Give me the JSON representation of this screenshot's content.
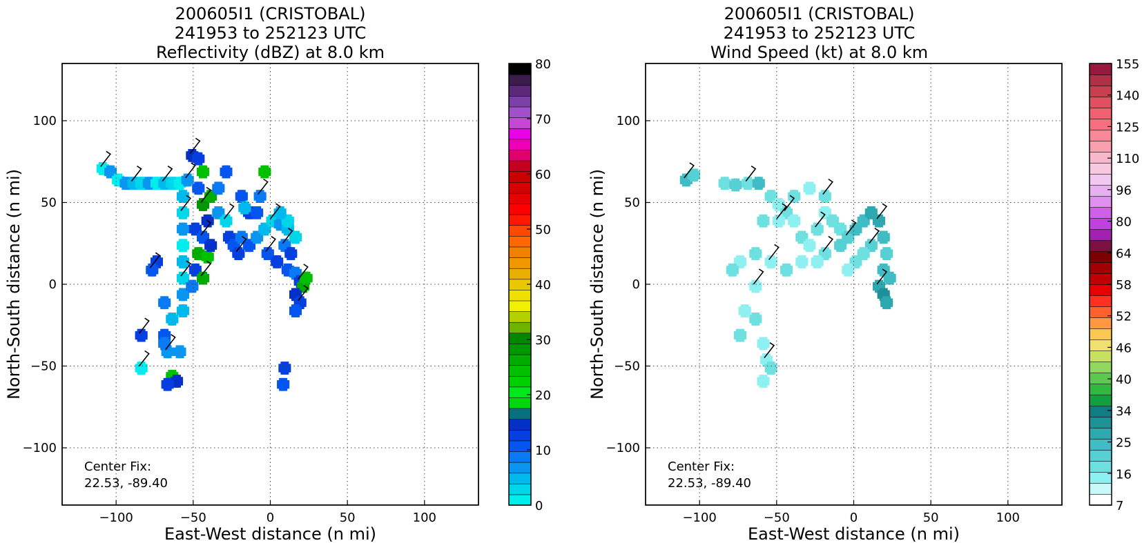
{
  "chart_data": [
    {
      "type": "heatmap",
      "title": [
        "200605I1 (CRISTOBAL)",
        "241953 to 252123 UTC",
        "Reflectivity (dBZ) at 8.0 km"
      ],
      "xlabel": "East-West distance (n mi)",
      "ylabel": "North-South distance (n mi)",
      "xlim": [
        -135,
        135
      ],
      "ylim": [
        -135,
        135
      ],
      "xticks": [
        -100,
        -50,
        0,
        50,
        100
      ],
      "yticks": [
        -100,
        -50,
        0,
        50,
        100
      ],
      "xtick_labels": [
        "−100",
        "−50",
        "0",
        "50",
        "100"
      ],
      "ytick_labels": [
        "−100",
        "−50",
        "0",
        "50",
        "100"
      ],
      "grid": true,
      "annotation": [
        "Center Fix:",
        "22.53, -89.40"
      ],
      "colorbar": {
        "label": "dBZ",
        "min": 0,
        "max": 80,
        "ticks": [
          0,
          10,
          20,
          30,
          40,
          50,
          60,
          70,
          80
        ],
        "tick_labels": [
          "0",
          "10",
          "20",
          "30",
          "40",
          "50",
          "60",
          "70",
          "80"
        ],
        "colors": [
          "#00eded",
          "#00d6ea",
          "#00b9ec",
          "#0a96f0",
          "#0a7af4",
          "#0555f0",
          "#063fe0",
          "#0530c8",
          "#08707d",
          "#00d60e",
          "#00e81c",
          "#00d000",
          "#00c000",
          "#00ac00",
          "#009800",
          "#008800",
          "#6cb400",
          "#b4d000",
          "#f0f000",
          "#f0e000",
          "#e8c800",
          "#e8b000",
          "#f09800",
          "#f08000",
          "#ff6800",
          "#ff4800",
          "#ff1800",
          "#ff0000",
          "#e80000",
          "#d60000",
          "#c80000",
          "#c40020",
          "#e00070",
          "#f000b4",
          "#e800e8",
          "#c448d4",
          "#a050c8",
          "#7c40a4",
          "#5c2878",
          "#3c1c4c",
          "#000000"
        ]
      },
      "series": [
        {
          "cells": [
            [
              -110,
              72,
              0
            ],
            [
              -105,
              70,
              3
            ],
            [
              -100,
              65,
              0
            ],
            [
              -95,
              63,
              3
            ],
            [
              -90,
              63,
              2
            ],
            [
              -85,
              63,
              1
            ],
            [
              -80,
              63,
              3
            ],
            [
              -75,
              63,
              0
            ],
            [
              -70,
              63,
              2
            ],
            [
              -65,
              63,
              1
            ],
            [
              -60,
              63,
              0
            ],
            [
              -58,
              55,
              2
            ],
            [
              -58,
              45,
              1
            ],
            [
              -58,
              35,
              3
            ],
            [
              -58,
              25,
              0
            ],
            [
              -58,
              15,
              2
            ],
            [
              -58,
              5,
              1
            ],
            [
              -58,
              -5,
              3
            ],
            [
              -58,
              -15,
              2
            ],
            [
              -75,
              15,
              6
            ],
            [
              -78,
              10,
              5
            ],
            [
              -70,
              -10,
              4
            ],
            [
              -70,
              -30,
              5
            ],
            [
              -65,
              -20,
              2
            ],
            [
              -68,
              -40,
              3
            ],
            [
              -65,
              -55,
              12
            ],
            [
              -62,
              -58,
              7
            ],
            [
              -68,
              -60,
              6
            ],
            [
              -52,
              80,
              7
            ],
            [
              -48,
              78,
              6
            ],
            [
              -45,
              70,
              12
            ],
            [
              -48,
              60,
              5
            ],
            [
              -45,
              50,
              14
            ],
            [
              -40,
              55,
              13
            ],
            [
              -42,
              40,
              7
            ],
            [
              -50,
              35,
              6
            ],
            [
              -45,
              30,
              5
            ],
            [
              -48,
              20,
              13
            ],
            [
              -42,
              18,
              12
            ],
            [
              -50,
              10,
              6
            ],
            [
              -45,
              5,
              13
            ],
            [
              -52,
              0,
              4
            ],
            [
              -40,
              25,
              7
            ],
            [
              -35,
              45,
              3
            ],
            [
              -30,
              40,
              1
            ],
            [
              -28,
              30,
              6
            ],
            [
              -25,
              25,
              5
            ],
            [
              -20,
              30,
              4
            ],
            [
              -22,
              20,
              6
            ],
            [
              -15,
              25,
              5
            ],
            [
              -10,
              30,
              3
            ],
            [
              -5,
              35,
              2
            ],
            [
              0,
              40,
              1
            ],
            [
              5,
              38,
              3
            ],
            [
              10,
              35,
              2
            ],
            [
              15,
              30,
              1
            ],
            [
              8,
              25,
              4
            ],
            [
              12,
              20,
              6
            ],
            [
              -15,
              45,
              6
            ],
            [
              -10,
              45,
              5
            ],
            [
              -8,
              55,
              4
            ],
            [
              -5,
              70,
              12
            ],
            [
              -20,
              55,
              5
            ],
            [
              -18,
              48,
              2
            ],
            [
              -3,
              20,
              5
            ],
            [
              3,
              15,
              6
            ],
            [
              10,
              10,
              5
            ],
            [
              15,
              8,
              4
            ],
            [
              18,
              3,
              6
            ],
            [
              20,
              0,
              13
            ],
            [
              22,
              5,
              12
            ],
            [
              15,
              -5,
              7
            ],
            [
              18,
              -10,
              6
            ],
            [
              15,
              -15,
              5
            ],
            [
              10,
              40,
              1
            ],
            [
              5,
              45,
              2
            ],
            [
              -85,
              -30,
              6
            ],
            [
              -70,
              -35,
              4
            ],
            [
              8,
              -50,
              6
            ],
            [
              7,
              -60,
              5
            ],
            [
              -85,
              -50,
              0
            ],
            [
              -60,
              -40,
              3
            ],
            [
              -30,
              70,
              5
            ],
            [
              -35,
              60,
              4
            ],
            [
              -55,
              65,
              3
            ]
          ]
        }
      ]
    },
    {
      "type": "heatmap",
      "title": [
        "200605I1 (CRISTOBAL)",
        "241953 to 252123 UTC",
        "Wind Speed (kt) at 8.0 km"
      ],
      "xlabel": "East-West distance (n mi)",
      "ylabel": "North-South distance (n mi)",
      "xlim": [
        -135,
        135
      ],
      "ylim": [
        -135,
        135
      ],
      "xticks": [
        -100,
        -50,
        0,
        50,
        100
      ],
      "yticks": [
        -100,
        -50,
        0,
        50,
        100
      ],
      "xtick_labels": [
        "−100",
        "−50",
        "0",
        "50",
        "100"
      ],
      "ytick_labels": [
        "−100",
        "−50",
        "0",
        "50",
        "100"
      ],
      "grid": true,
      "annotation": [
        "Center Fix:",
        "22.53, -89.40"
      ],
      "colorbar": {
        "label": "kt",
        "tick_labels": [
          "7",
          "16",
          "25",
          "34",
          "40",
          "46",
          "52",
          "58",
          "64",
          "80",
          "96",
          "110",
          "125",
          "140",
          "155"
        ],
        "colors": [
          "#ffffff",
          "#c8f8f8",
          "#8ef0f0",
          "#6ee0e0",
          "#56d0d4",
          "#40bcc4",
          "#2ea8b0",
          "#1e9098",
          "#107c84",
          "#10a040",
          "#30b840",
          "#5cc850",
          "#90d860",
          "#c8e060",
          "#f0e070",
          "#f8c850",
          "#ff9840",
          "#ff6030",
          "#ff3020",
          "#e80000",
          "#c00000",
          "#a00000",
          "#7c0000",
          "#7c1040",
          "#a020b0",
          "#c040e0",
          "#d060e8",
          "#e090f0",
          "#e8b0f0",
          "#f0c8f0",
          "#f8c8e0",
          "#f8b8cc",
          "#f8a0b0",
          "#f88898",
          "#f87080",
          "#f06070",
          "#e05060",
          "#c84050",
          "#b03048",
          "#981840"
        ]
      },
      "series": [
        {
          "cells": [
            [
              -110,
              65,
              5
            ],
            [
              -105,
              68,
              4
            ],
            [
              -85,
              63,
              3
            ],
            [
              -78,
              62,
              4
            ],
            [
              -70,
              63,
              3
            ],
            [
              -63,
              63,
              5
            ],
            [
              -55,
              55,
              3
            ],
            [
              -50,
              50,
              2
            ],
            [
              -45,
              45,
              3
            ],
            [
              -40,
              40,
              2
            ],
            [
              -35,
              30,
              3
            ],
            [
              -30,
              25,
              2
            ],
            [
              -25,
              35,
              3
            ],
            [
              -20,
              45,
              2
            ],
            [
              -15,
              40,
              3
            ],
            [
              -10,
              35,
              3
            ],
            [
              -5,
              30,
              4
            ],
            [
              0,
              35,
              5
            ],
            [
              5,
              40,
              5
            ],
            [
              10,
              45,
              6
            ],
            [
              15,
              40,
              6
            ],
            [
              18,
              30,
              5
            ],
            [
              20,
              20,
              4
            ],
            [
              18,
              10,
              5
            ],
            [
              15,
              0,
              6
            ],
            [
              18,
              -5,
              7
            ],
            [
              20,
              -10,
              6
            ],
            [
              22,
              5,
              5
            ],
            [
              10,
              25,
              4
            ],
            [
              5,
              20,
              3
            ],
            [
              0,
              15,
              3
            ],
            [
              -5,
              10,
              2
            ],
            [
              -20,
              20,
              3
            ],
            [
              -25,
              15,
              2
            ],
            [
              -35,
              15,
              2
            ],
            [
              -45,
              10,
              3
            ],
            [
              -55,
              15,
              2
            ],
            [
              -65,
              20,
              3
            ],
            [
              -75,
              15,
              2
            ],
            [
              -80,
              10,
              3
            ],
            [
              -65,
              0,
              2
            ],
            [
              -72,
              -15,
              2
            ],
            [
              -65,
              -20,
              3
            ],
            [
              -60,
              -35,
              2
            ],
            [
              -58,
              -45,
              2
            ],
            [
              -55,
              -50,
              3
            ],
            [
              -60,
              -58,
              2
            ],
            [
              -75,
              -30,
              3
            ],
            [
              -50,
              40,
              2
            ],
            [
              -60,
              40,
              3
            ],
            [
              -40,
              55,
              3
            ],
            [
              -30,
              60,
              2
            ],
            [
              -20,
              55,
              3
            ],
            [
              -10,
              25,
              4
            ]
          ]
        }
      ]
    }
  ]
}
